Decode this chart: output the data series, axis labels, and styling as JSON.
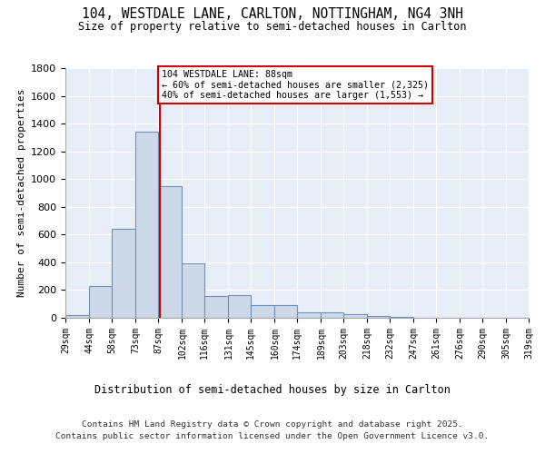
{
  "title": "104, WESTDALE LANE, CARLTON, NOTTINGHAM, NG4 3NH",
  "subtitle": "Size of property relative to semi-detached houses in Carlton",
  "xlabel": "Distribution of semi-detached houses by size in Carlton",
  "ylabel": "Number of semi-detached properties",
  "bar_edges": [
    29,
    44,
    58,
    73,
    87,
    102,
    116,
    131,
    145,
    160,
    174,
    189,
    203,
    218,
    232,
    247,
    261,
    276,
    290,
    305,
    319
  ],
  "bar_heights": [
    20,
    230,
    640,
    1340,
    950,
    390,
    160,
    165,
    90,
    90,
    40,
    40,
    25,
    10,
    5,
    3,
    2,
    1,
    1,
    1
  ],
  "bar_color": "#cdd8e8",
  "bar_edge_color": "#7090b8",
  "property_value": 88,
  "red_line_color": "#cc0000",
  "annotation_text": "104 WESTDALE LANE: 88sqm\n← 60% of semi-detached houses are smaller (2,325)\n40% of semi-detached houses are larger (1,553) →",
  "annotation_box_color": "#ffffff",
  "annotation_box_edge": "#cc0000",
  "tick_labels": [
    "29sqm",
    "44sqm",
    "58sqm",
    "73sqm",
    "87sqm",
    "102sqm",
    "116sqm",
    "131sqm",
    "145sqm",
    "160sqm",
    "174sqm",
    "189sqm",
    "203sqm",
    "218sqm",
    "232sqm",
    "247sqm",
    "261sqm",
    "276sqm",
    "290sqm",
    "305sqm",
    "319sqm"
  ],
  "ylim": [
    0,
    1800
  ],
  "yticks": [
    0,
    200,
    400,
    600,
    800,
    1000,
    1200,
    1400,
    1600,
    1800
  ],
  "background_color": "#e8eef8",
  "footer_line1": "Contains HM Land Registry data © Crown copyright and database right 2025.",
  "footer_line2": "Contains public sector information licensed under the Open Government Licence v3.0."
}
